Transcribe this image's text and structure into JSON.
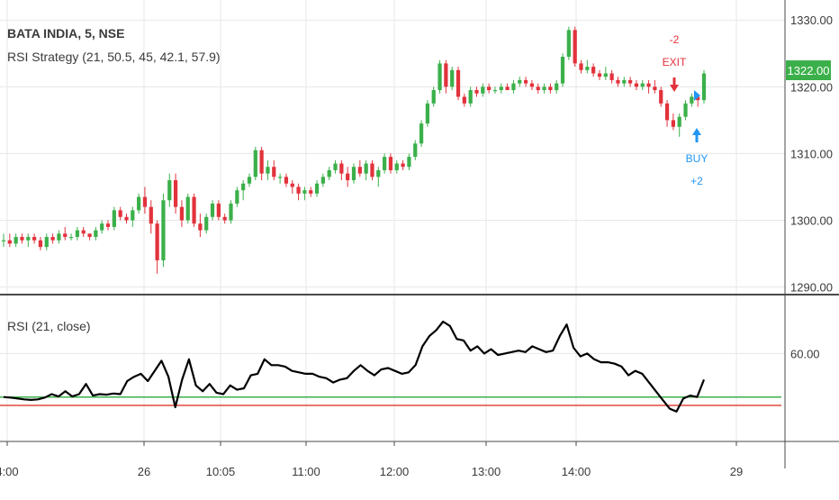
{
  "chart_title": "BATA INDIA, 5, NSE",
  "strategy_label": "RSI Strategy (21, 50.5, 45, 42.1, 57.9)",
  "rsi_label": "RSI (21, close)",
  "price_badge": "1322.00",
  "colors": {
    "up": "#3bb04a",
    "down": "#e2323c",
    "buy": "#2196f3",
    "exit": "#e2323c",
    "green_level": "#3bb04a",
    "red_level": "#e24a3c",
    "grid": "#e7e7e7",
    "axis_text": "#3a3a3a",
    "rsi_line": "#000000"
  },
  "signals": [
    {
      "type": "exit",
      "text_top": "-2",
      "text_bottom": "EXIT",
      "time": "14:45"
    },
    {
      "type": "buy",
      "text_top": "BUY",
      "text_bottom": "+2",
      "time": "14:55"
    }
  ],
  "chart_data": [
    {
      "type": "candlestick",
      "title": "BATA INDIA, 5, NSE",
      "y_ticks": [
        "1290.00",
        "1300.00",
        "1310.00",
        "1320.00",
        "1330.00"
      ],
      "ylim": [
        1289,
        1333
      ],
      "last_price": 1322.0,
      "x_ticks": [
        "4:00",
        "26",
        "10:05",
        "11:00",
        "12:00",
        "13:00",
        "14:00",
        "29"
      ],
      "series": [
        {
          "candles_ohlc": [
            [
              1297,
              1298,
              1296,
              1297
            ],
            [
              1297,
              1298,
              1296,
              1296.5
            ],
            [
              1296.5,
              1298,
              1296,
              1297.5
            ],
            [
              1297.5,
              1298,
              1296.5,
              1297
            ],
            [
              1297,
              1298,
              1296,
              1297.5
            ],
            [
              1297.5,
              1298,
              1296.5,
              1297
            ],
            [
              1297,
              1297.5,
              1295.5,
              1296
            ],
            [
              1296,
              1298,
              1295.5,
              1297.5
            ],
            [
              1297.5,
              1298,
              1296.5,
              1297
            ],
            [
              1297,
              1298.5,
              1296.5,
              1298
            ],
            [
              1298,
              1299,
              1297,
              1297.5
            ],
            [
              1297.5,
              1298,
              1297,
              1297.5
            ],
            [
              1297.5,
              1299,
              1297,
              1298.5
            ],
            [
              1298.5,
              1299,
              1297.5,
              1298
            ],
            [
              1298,
              1298,
              1297,
              1297.5
            ],
            [
              1297.5,
              1299,
              1297,
              1298.5
            ],
            [
              1298.5,
              1300,
              1298,
              1299.5
            ],
            [
              1299.5,
              1300,
              1298.5,
              1299
            ],
            [
              1299,
              1302,
              1298.5,
              1301.5
            ],
            [
              1301.5,
              1302,
              1300,
              1300.5
            ],
            [
              1300.5,
              1301,
              1299.5,
              1300
            ],
            [
              1300,
              1302,
              1299,
              1301.5
            ],
            [
              1301.5,
              1304,
              1301,
              1303.5
            ],
            [
              1303.5,
              1305,
              1301,
              1302
            ],
            [
              1302,
              1303,
              1298,
              1299.5
            ],
            [
              1299.5,
              1300,
              1292,
              1294
            ],
            [
              1294,
              1304,
              1293,
              1303
            ],
            [
              1303,
              1307,
              1302,
              1306
            ],
            [
              1306,
              1307,
              1301,
              1302
            ],
            [
              1302,
              1303,
              1299,
              1300
            ],
            [
              1300,
              1304,
              1299.5,
              1303.5
            ],
            [
              1303.5,
              1304,
              1299,
              1299.5
            ],
            [
              1299.5,
              1301,
              1297.5,
              1298.5
            ],
            [
              1298.5,
              1301,
              1298,
              1300.5
            ],
            [
              1300.5,
              1303,
              1300,
              1302.5
            ],
            [
              1302.5,
              1303,
              1300,
              1300.5
            ],
            [
              1300.5,
              1301,
              1299.5,
              1300
            ],
            [
              1300,
              1303,
              1299.5,
              1302.5
            ],
            [
              1302.5,
              1305,
              1302,
              1304.5
            ],
            [
              1304.5,
              1306,
              1303,
              1305.5
            ],
            [
              1305.5,
              1307,
              1305,
              1306.5
            ],
            [
              1306.5,
              1311,
              1306,
              1310.5
            ],
            [
              1310.5,
              1311,
              1306,
              1307
            ],
            [
              1307,
              1309,
              1306,
              1308
            ],
            [
              1308,
              1309,
              1306,
              1306.5
            ],
            [
              1306.5,
              1307,
              1305.5,
              1306.5
            ],
            [
              1306.5,
              1307,
              1305,
              1305.5
            ],
            [
              1305.5,
              1306,
              1304,
              1305
            ],
            [
              1305,
              1305.5,
              1303,
              1304
            ],
            [
              1304,
              1305,
              1303,
              1304.5
            ],
            [
              1304.5,
              1305,
              1303.5,
              1304
            ],
            [
              1304,
              1306,
              1303.5,
              1305.5
            ],
            [
              1305.5,
              1307,
              1305,
              1306.5
            ],
            [
              1306.5,
              1308,
              1306,
              1307.5
            ],
            [
              1307.5,
              1309,
              1307,
              1308.5
            ],
            [
              1308.5,
              1309,
              1306,
              1307
            ],
            [
              1307,
              1308,
              1305,
              1306
            ],
            [
              1306,
              1308.5,
              1305.5,
              1308
            ],
            [
              1308,
              1309,
              1306.5,
              1307
            ],
            [
              1307,
              1309,
              1306,
              1308.5
            ],
            [
              1308.5,
              1309,
              1306,
              1306.5
            ],
            [
              1306.5,
              1308,
              1305,
              1307.5
            ],
            [
              1307.5,
              1310,
              1307,
              1309.5
            ],
            [
              1309.5,
              1310,
              1307,
              1307.5
            ],
            [
              1307.5,
              1309,
              1307,
              1308.5
            ],
            [
              1308.5,
              1309,
              1307.5,
              1308
            ],
            [
              1308,
              1310,
              1307.5,
              1309.5
            ],
            [
              1309.5,
              1312,
              1309,
              1311.5
            ],
            [
              1311.5,
              1315,
              1311,
              1314.5
            ],
            [
              1314.5,
              1318,
              1314,
              1317.5
            ],
            [
              1317.5,
              1320,
              1317,
              1319.5
            ],
            [
              1319.5,
              1324,
              1319,
              1323.5
            ],
            [
              1323.5,
              1324,
              1319,
              1320
            ],
            [
              1320,
              1323,
              1319.5,
              1322.5
            ],
            [
              1322.5,
              1323,
              1318,
              1318.5
            ],
            [
              1318.5,
              1319,
              1317,
              1317.5
            ],
            [
              1317.5,
              1320,
              1317,
              1319.5
            ],
            [
              1319.5,
              1320,
              1318.5,
              1319
            ],
            [
              1319,
              1320.5,
              1318.5,
              1320
            ],
            [
              1320,
              1320.5,
              1319,
              1319.5
            ],
            [
              1319.5,
              1320,
              1319,
              1319.5
            ],
            [
              1319.5,
              1320.5,
              1319,
              1320
            ],
            [
              1320,
              1320.5,
              1319.5,
              1319.5
            ],
            [
              1319.5,
              1321,
              1319,
              1320.5
            ],
            [
              1320.5,
              1321.5,
              1320,
              1321
            ],
            [
              1321,
              1321.5,
              1320,
              1320.5
            ],
            [
              1320.5,
              1321,
              1319.5,
              1320
            ],
            [
              1320,
              1320.5,
              1319,
              1319.5
            ],
            [
              1319.5,
              1320.5,
              1319,
              1320
            ],
            [
              1320,
              1320.5,
              1319,
              1319.5
            ],
            [
              1319.5,
              1321,
              1319,
              1320.5
            ],
            [
              1320.5,
              1325,
              1320,
              1324.5
            ],
            [
              1324.5,
              1329,
              1324,
              1328.5
            ],
            [
              1328.5,
              1329,
              1323,
              1323.5
            ],
            [
              1323.5,
              1324,
              1322,
              1322.5
            ],
            [
              1322.5,
              1324,
              1322,
              1323
            ],
            [
              1323,
              1323.5,
              1321.5,
              1322
            ],
            [
              1322,
              1322.5,
              1321,
              1321.5
            ],
            [
              1321.5,
              1323,
              1321,
              1322
            ],
            [
              1322,
              1322.5,
              1320.5,
              1321
            ],
            [
              1321,
              1321.5,
              1320,
              1320.5
            ],
            [
              1320.5,
              1321.5,
              1320,
              1321
            ],
            [
              1321,
              1321.5,
              1320,
              1320.5
            ],
            [
              1320.5,
              1321,
              1319.5,
              1320
            ],
            [
              1320,
              1321,
              1319.5,
              1320.5
            ],
            [
              1320.5,
              1321,
              1319,
              1320
            ],
            [
              1320,
              1321,
              1319,
              1319.5
            ],
            [
              1319.5,
              1320,
              1317,
              1317.5
            ],
            [
              1317.5,
              1318,
              1314,
              1315
            ],
            [
              1315,
              1316,
              1313.5,
              1314
            ],
            [
              1314,
              1316,
              1312.5,
              1315.5
            ],
            [
              1315.5,
              1318,
              1315,
              1317.5
            ],
            [
              1317.5,
              1319,
              1317,
              1318.5
            ],
            [
              1318.5,
              1319,
              1317,
              1318
            ],
            [
              1318,
              1322.5,
              1317.5,
              1322
            ]
          ]
        }
      ]
    },
    {
      "type": "line",
      "title": "RSI (21, close)",
      "y_ticks": [
        "60.00"
      ],
      "ylim": [
        30,
        80
      ],
      "levels": [
        45,
        42.1
      ],
      "series": [
        {
          "values": [
            45,
            44.8,
            44.5,
            44.2,
            44.0,
            44.2,
            44.8,
            46.0,
            45.2,
            47.0,
            45.2,
            46.0,
            49.5,
            45.5,
            46.0,
            45.8,
            46.2,
            46.0,
            50.5,
            52.0,
            53.0,
            50.5,
            54.0,
            57.5,
            52.0,
            41.5,
            51.0,
            58.0,
            49.0,
            47.0,
            49.5,
            46.5,
            46.0,
            49.0,
            47.5,
            48.0,
            52.5,
            53.0,
            58.0,
            56.0,
            56.0,
            55.5,
            54.0,
            53.5,
            53.0,
            53.0,
            52.0,
            51.5,
            50.0,
            51.0,
            51.5,
            54.0,
            56.0,
            54.0,
            52.5,
            54.5,
            55.0,
            54.0,
            53.0,
            53.5,
            56.0,
            62.5,
            66.0,
            68.0,
            71.0,
            69.5,
            65.0,
            64.5,
            61.0,
            62.5,
            60.0,
            61.5,
            59.5,
            60.0,
            60.5,
            61.0,
            60.5,
            62.5,
            61.5,
            60.5,
            61.0,
            66.0,
            70.0,
            62.0,
            59.0,
            60.0,
            58.0,
            57.0,
            57.0,
            56.5,
            55.5,
            52.5,
            54.0,
            53.0,
            50.0,
            47.0,
            44.0,
            41.0,
            40.0,
            44.5,
            45.5,
            45.0,
            51.0
          ]
        }
      ]
    }
  ]
}
